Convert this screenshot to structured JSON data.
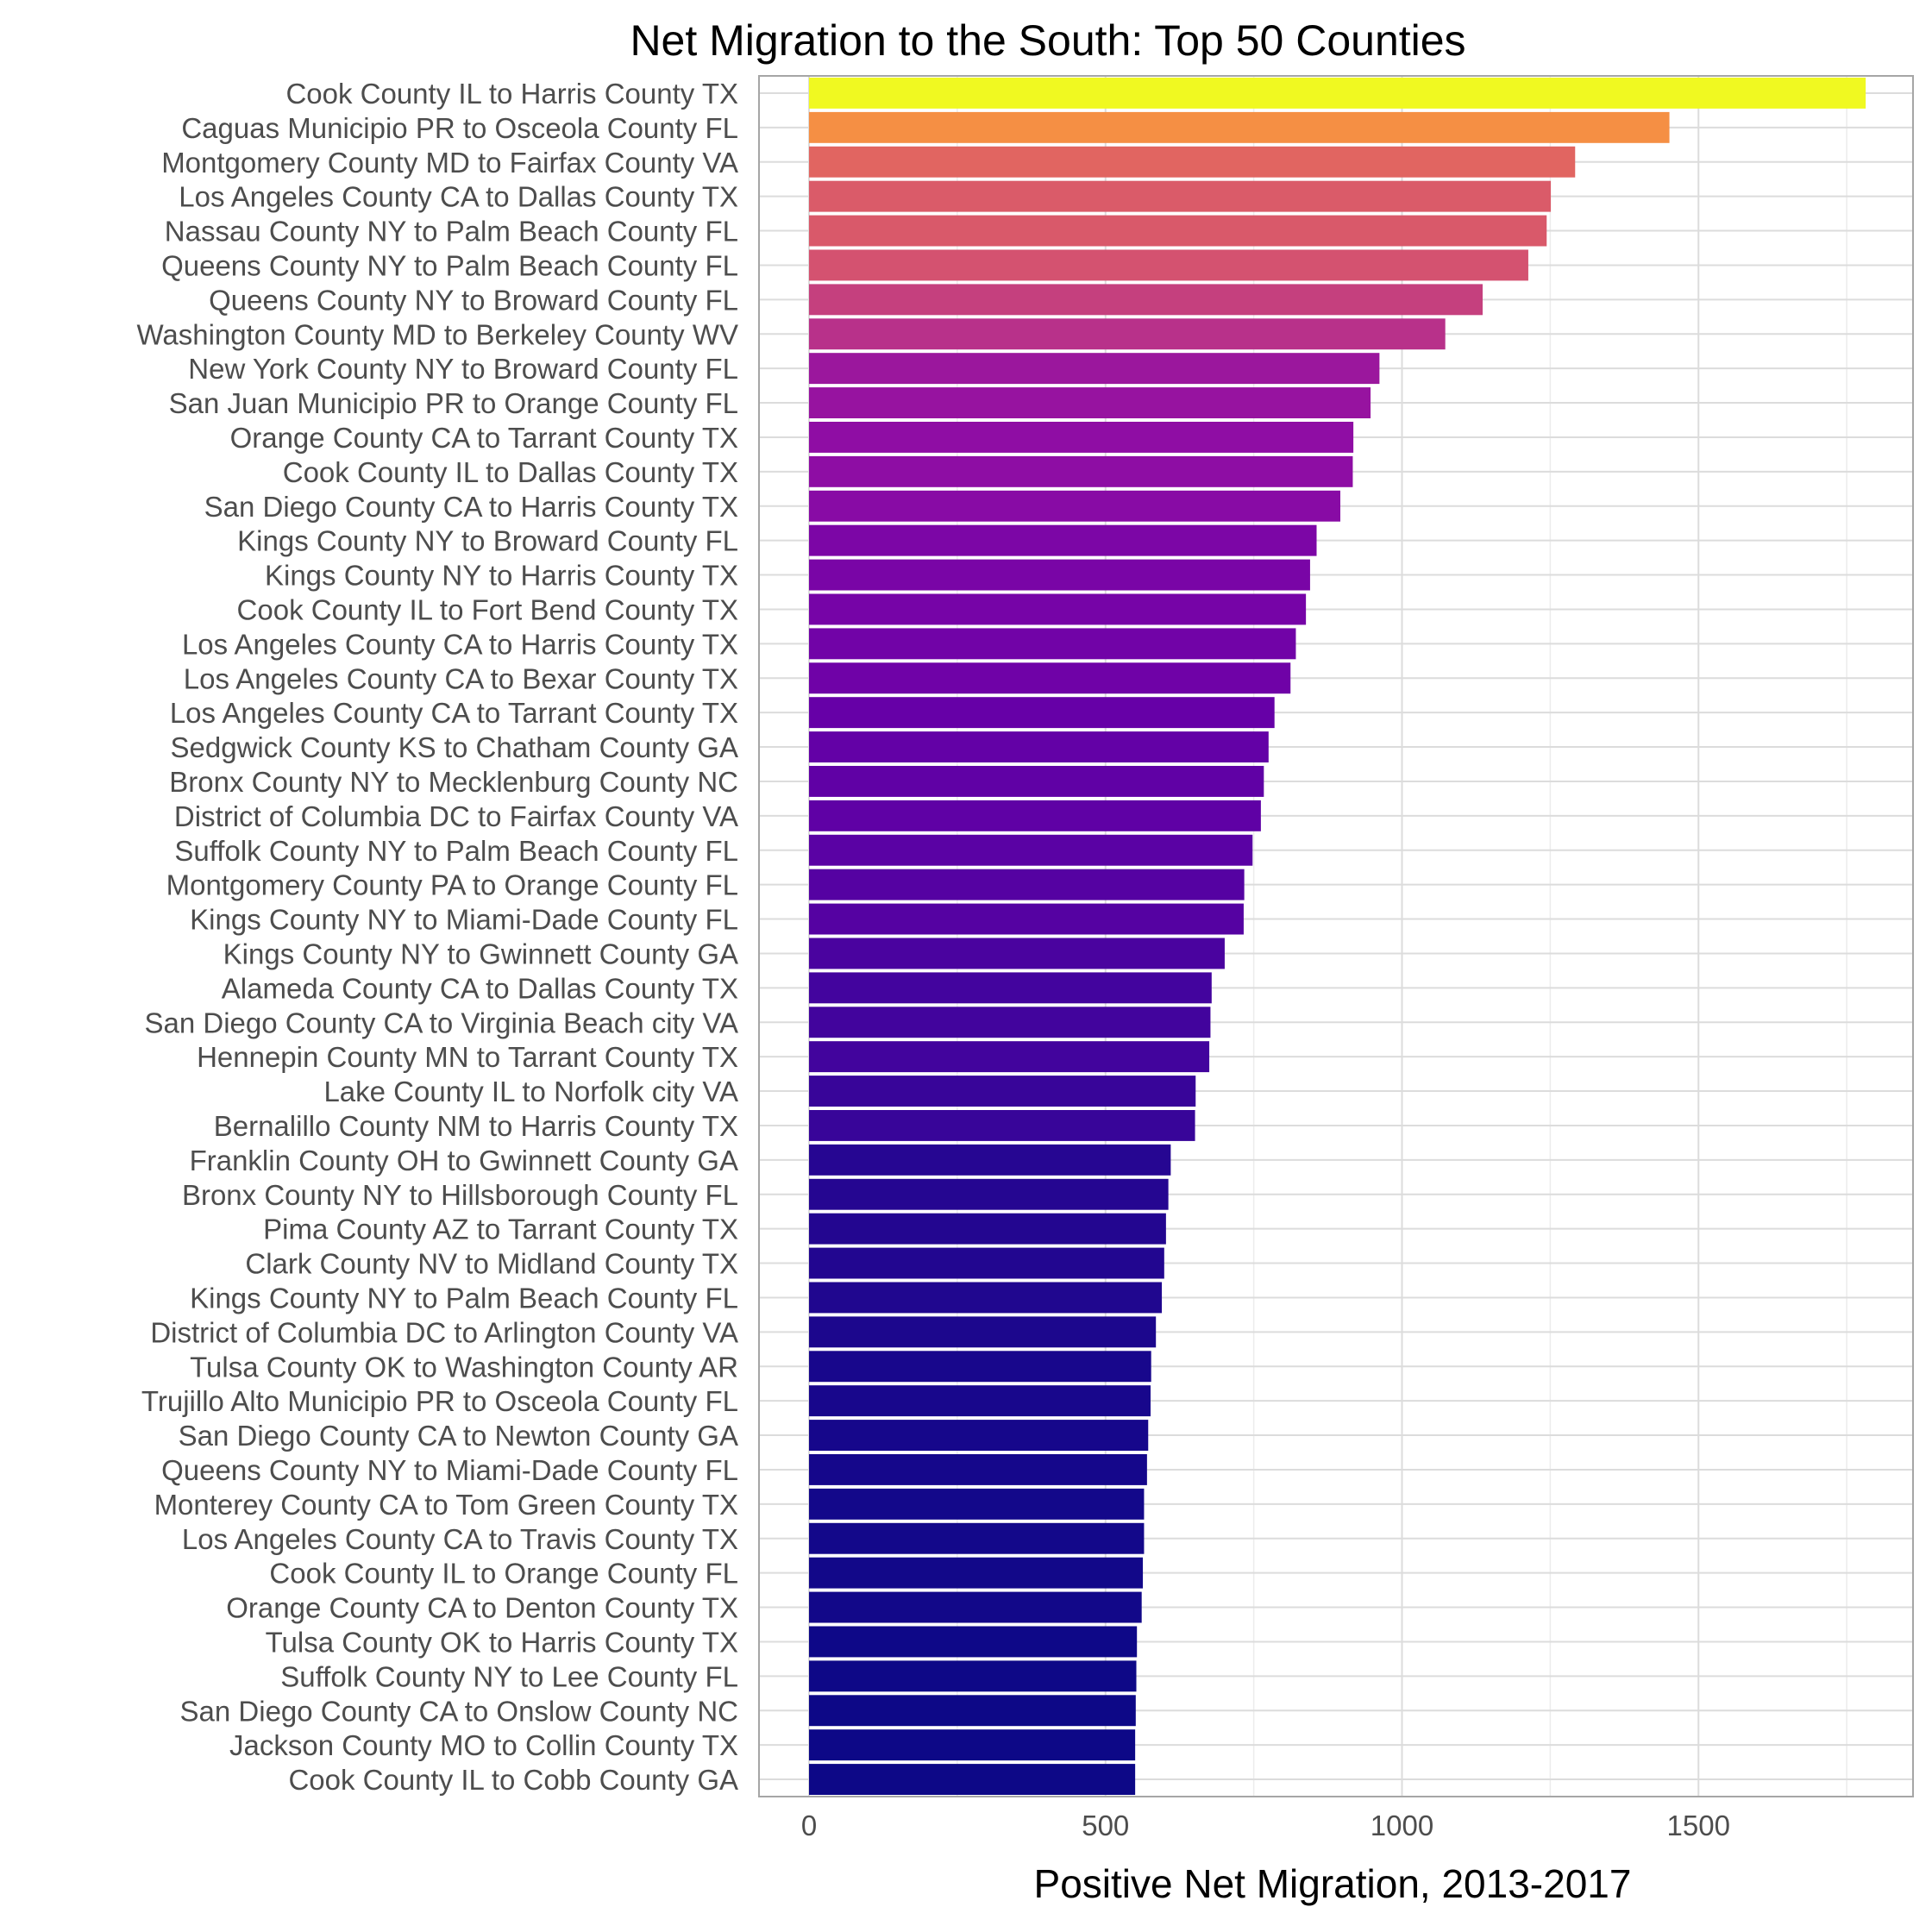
{
  "chart_data": {
    "type": "bar",
    "orientation": "horizontal",
    "title": "Net Migration to the South: Top 50 Counties",
    "xlabel": "Positive Net Migration, 2013-2017",
    "ylabel": "",
    "xlim": [
      -90,
      1870
    ],
    "xticks": [
      0,
      500,
      1000,
      1500
    ],
    "grid": true,
    "legend": "none",
    "colormap": "plasma",
    "categories": [
      "Cook County IL to Harris County TX",
      "Caguas Municipio PR to Osceola County FL",
      "Montgomery County MD to Fairfax County VA",
      "Los Angeles County CA to Dallas County TX",
      "Nassau County NY to Palm Beach County FL",
      "Queens County NY to Palm Beach County FL",
      "Queens County NY to Broward County FL",
      "Washington County MD to Berkeley County WV",
      "New York County NY to Broward County FL",
      "San Juan Municipio PR to Orange County FL",
      "Orange County CA to Tarrant County TX",
      "Cook County IL to Dallas County TX",
      "San Diego County CA to Harris County TX",
      "Kings County NY to Broward County FL",
      "Kings County NY to Harris County TX",
      "Cook County IL to Fort Bend County TX",
      "Los Angeles County CA to Harris County TX",
      "Los Angeles County CA to Bexar County TX",
      "Los Angeles County CA to Tarrant County TX",
      "Sedgwick County KS to Chatham County GA",
      "Bronx County NY to Mecklenburg County NC",
      "District of Columbia DC to Fairfax County VA",
      "Suffolk County NY to Palm Beach County FL",
      "Montgomery County PA to Orange County FL",
      "Kings County NY to Miami-Dade County FL",
      "Kings County NY to Gwinnett County GA",
      "Alameda County CA to Dallas County TX",
      "San Diego County CA to Virginia Beach city VA",
      "Hennepin County MN to Tarrant County TX",
      "Lake County IL to Norfolk city VA",
      "Bernalillo County NM to Harris County TX",
      "Franklin County OH to Gwinnett County GA",
      "Bronx County NY to Hillsborough County FL",
      "Pima County AZ to Tarrant County TX",
      "Clark County NV to Midland County TX",
      "Kings County NY to Palm Beach County FL",
      "District of Columbia DC to Arlington County VA",
      "Tulsa County OK to Washington County AR",
      "Trujillo Alto Municipio PR to Osceola County FL",
      "San Diego County CA to Newton County GA",
      "Queens County NY to Miami-Dade County FL",
      "Monterey County CA to Tom Green County TX",
      "Los Angeles County CA to Travis County TX",
      "Cook County IL to Orange County FL",
      "Orange County CA to Denton County TX",
      "Tulsa County OK to Harris County TX",
      "Suffolk County NY to Lee County FL",
      "San Diego County CA to Onslow County NC",
      "Jackson County MO to Collin County TX",
      "Cook County IL to Cobb County GA"
    ],
    "values": [
      1782,
      1451,
      1292,
      1251,
      1244,
      1213,
      1136,
      1073,
      962,
      947,
      918,
      917,
      896,
      856,
      845,
      838,
      821,
      812,
      785,
      775,
      767,
      762,
      748,
      734,
      733,
      701,
      679,
      677,
      675,
      652,
      651,
      610,
      606,
      602,
      599,
      595,
      585,
      577,
      576,
      572,
      570,
      565,
      565,
      563,
      561,
      553,
      552,
      551,
      550,
      550
    ]
  }
}
